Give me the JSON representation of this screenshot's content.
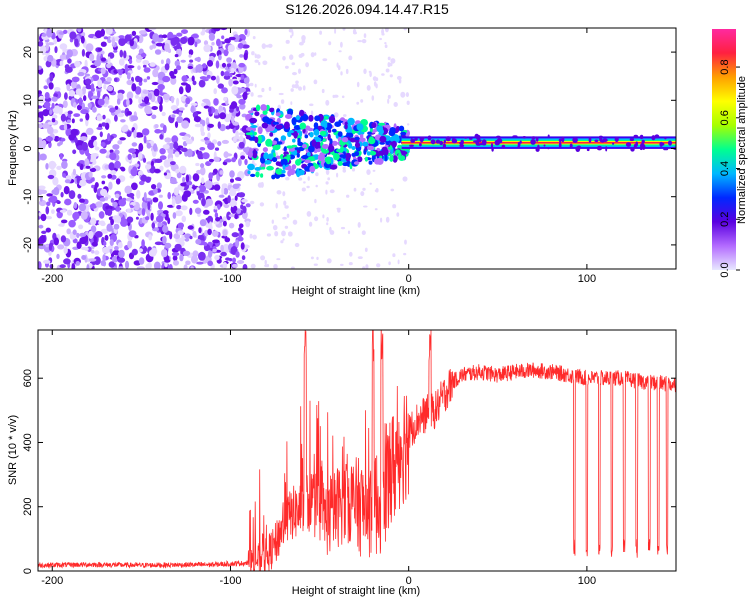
{
  "title": "S126.2026.094.14.47.R15",
  "chart_data": [
    {
      "type": "heatmap",
      "name": "spectrogram",
      "xlabel": "Height of straight line (km)",
      "ylabel": "Frequency (Hz)",
      "xlim": [
        -208,
        150
      ],
      "ylim": [
        -25,
        25
      ],
      "xticks": [
        -200,
        -100,
        0,
        100
      ],
      "yticks": [
        -20,
        -10,
        0,
        10,
        20
      ],
      "noise_region_km": [
        -208,
        -90
      ],
      "transition_region_km": [
        -90,
        0
      ],
      "coherent_region_km": [
        0,
        150
      ],
      "signal_frequency_hz": 1.2,
      "colorbar": {
        "label": "Normalized spectral amplitude",
        "range": [
          0.0,
          0.95
        ],
        "ticks": [
          "0.0",
          "0.2",
          "0.4",
          "0.6",
          "0.8"
        ],
        "colors": [
          "#e8e8ff",
          "#b36bff",
          "#5a00e0",
          "#0028ff",
          "#00b8ff",
          "#00ff90",
          "#a6ff00",
          "#ffff00",
          "#ffa000",
          "#ff2040",
          "#ff2aa0"
        ]
      }
    },
    {
      "type": "line",
      "name": "snr",
      "xlabel": "Height of straight line (km)",
      "ylabel": "SNR (10 * v/v)",
      "xlim": [
        -208,
        150
      ],
      "ylim": [
        0,
        750
      ],
      "xticks": [
        -200,
        -100,
        0,
        100
      ],
      "yticks": [
        0,
        200,
        400,
        600
      ],
      "color": "#ff2a2a",
      "series": [
        {
          "name": "SNR",
          "x": [
            -208,
            -180,
            -150,
            -110,
            -90,
            -80,
            -75,
            -70,
            -65,
            -60,
            -55,
            -50,
            -45,
            -40,
            -35,
            -30,
            -25,
            -20,
            -15,
            -10,
            -5,
            0,
            5,
            10,
            15,
            20,
            25,
            30,
            35,
            40,
            45,
            50,
            60,
            70,
            80,
            90,
            100,
            110,
            120,
            130,
            140,
            150
          ],
          "y": [
            18,
            20,
            18,
            20,
            25,
            45,
            80,
            150,
            180,
            190,
            220,
            190,
            160,
            200,
            230,
            210,
            190,
            200,
            230,
            300,
            380,
            430,
            470,
            490,
            500,
            550,
            590,
            610,
            615,
            620,
            615,
            610,
            620,
            625,
            620,
            610,
            600,
            600,
            600,
            590,
            585,
            580
          ]
        }
      ],
      "dropouts_km": [
        93,
        100,
        107,
        114,
        121,
        128,
        135,
        140,
        145
      ],
      "spikes_km": [
        -58,
        -20,
        -15,
        12
      ]
    }
  ]
}
